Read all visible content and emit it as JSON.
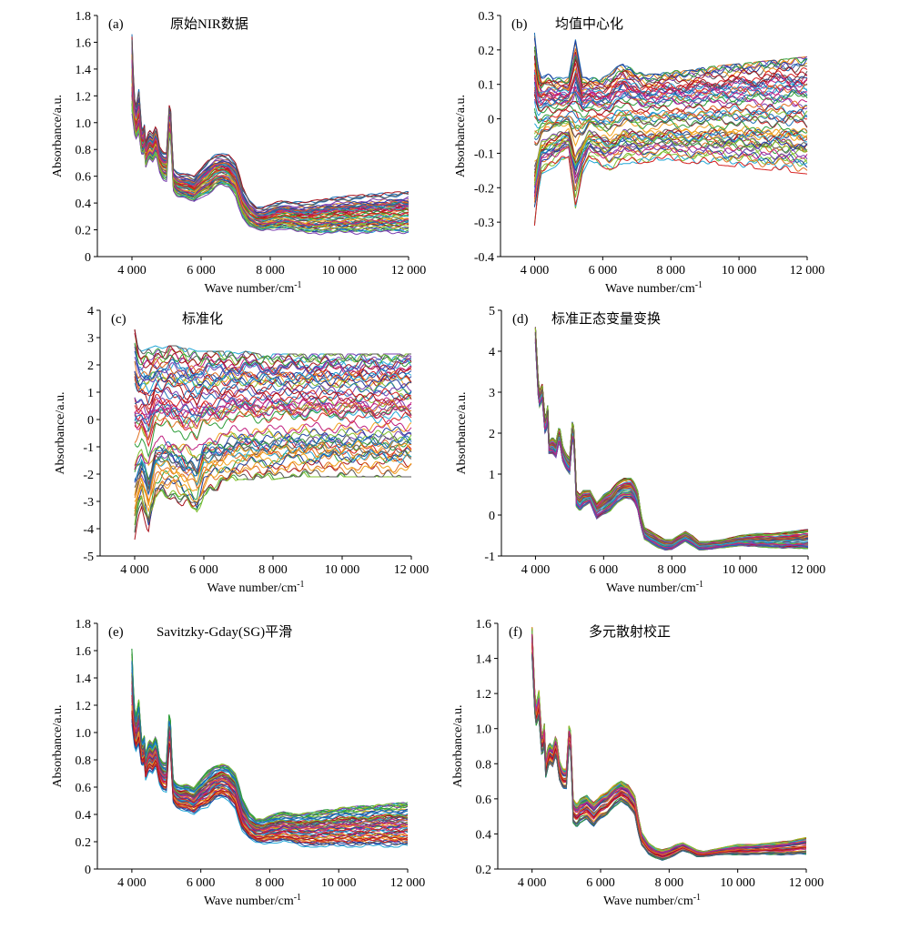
{
  "palette": [
    "#1f3f9e",
    "#d62020",
    "#2e9e3a",
    "#f0a01a",
    "#22a7d6",
    "#7a3fb0",
    "#a8101a",
    "#7fbf2e",
    "#e07020",
    "#1a6eb5",
    "#c02080",
    "#5a5a5a"
  ],
  "chart_data": [
    {
      "type": "line",
      "panel": "(a)",
      "title": "原始NIR数据",
      "xlabel": "Wave number/cm",
      "xlabel_sup": "-1",
      "ylabel": "Absorbance/a.u.",
      "xlim": [
        3000,
        12000
      ],
      "ylim": [
        0,
        1.8
      ],
      "xticks": [
        4000,
        6000,
        8000,
        10000,
        12000
      ],
      "xtick_labels": [
        "4 000",
        "6 000",
        "8 000",
        "10 000",
        "12 000"
      ],
      "yticks": [
        0,
        0.2,
        0.4,
        0.6,
        0.8,
        1.0,
        1.2,
        1.4,
        1.6,
        1.8
      ],
      "ytick_labels": [
        "0",
        "0.2",
        "0.4",
        "0.6",
        "0.8",
        "1.0",
        "1.2",
        "1.4",
        "1.6",
        "1.8"
      ],
      "grid": false,
      "mode": "raw",
      "x": [
        4000,
        4050,
        4100,
        4200,
        4300,
        4350,
        4400,
        4500,
        4600,
        4700,
        4800,
        4900,
        5000,
        5100,
        5150,
        5200,
        5300,
        5400,
        5600,
        5800,
        6000,
        6200,
        6400,
        6600,
        6800,
        6900,
        7000,
        7100,
        7200,
        7400,
        7600,
        7800,
        8000,
        8200,
        8400,
        8600,
        8800,
        9000,
        9500,
        10000,
        10500,
        11000,
        11500,
        12000
      ],
      "envelope_low": [
        1.05,
        0.95,
        0.85,
        0.9,
        0.72,
        0.8,
        0.65,
        0.72,
        0.7,
        0.75,
        0.62,
        0.57,
        0.56,
        0.95,
        0.7,
        0.48,
        0.44,
        0.43,
        0.42,
        0.4,
        0.44,
        0.45,
        0.5,
        0.52,
        0.5,
        0.47,
        0.44,
        0.35,
        0.28,
        0.22,
        0.19,
        0.18,
        0.19,
        0.19,
        0.2,
        0.19,
        0.17,
        0.16,
        0.16,
        0.16,
        0.16,
        0.16,
        0.16,
        0.16
      ],
      "envelope_high": [
        1.66,
        1.3,
        1.1,
        1.25,
        0.9,
        1.02,
        0.85,
        0.95,
        0.92,
        0.98,
        0.82,
        0.78,
        0.78,
        1.22,
        0.9,
        0.66,
        0.63,
        0.62,
        0.62,
        0.6,
        0.66,
        0.72,
        0.76,
        0.77,
        0.76,
        0.73,
        0.7,
        0.62,
        0.52,
        0.42,
        0.37,
        0.37,
        0.39,
        0.41,
        0.42,
        0.41,
        0.41,
        0.41,
        0.43,
        0.45,
        0.46,
        0.47,
        0.48,
        0.49
      ]
    },
    {
      "type": "line",
      "panel": "(b)",
      "title": "均值中心化",
      "xlabel": "Wave number/cm",
      "xlabel_sup": "-1",
      "ylabel": "Absorbance/a.u.",
      "xlim": [
        3000,
        12000
      ],
      "ylim": [
        -0.4,
        0.3
      ],
      "xticks": [
        4000,
        6000,
        8000,
        10000,
        12000
      ],
      "xtick_labels": [
        "4 000",
        "6 000",
        "8 000",
        "10 000",
        "12 000"
      ],
      "yticks": [
        -0.4,
        -0.3,
        -0.2,
        -0.1,
        0,
        0.1,
        0.2,
        0.3
      ],
      "ytick_labels": [
        "-0.4",
        "-0.3",
        "-0.2",
        "-0.1",
        "0",
        "0.1",
        "0.2",
        "0.3"
      ],
      "grid": false,
      "mode": "centered",
      "x": [
        4000,
        4100,
        4200,
        4400,
        4600,
        4800,
        5000,
        5200,
        5400,
        5600,
        5800,
        6000,
        6200,
        6400,
        6600,
        6800,
        7000,
        7200,
        7600,
        8000,
        8500,
        9000,
        10000,
        11000,
        12000
      ],
      "envelope_low": [
        -0.31,
        -0.22,
        -0.16,
        -0.15,
        -0.14,
        -0.12,
        -0.11,
        -0.26,
        -0.16,
        -0.12,
        -0.13,
        -0.14,
        -0.15,
        -0.14,
        -0.13,
        -0.13,
        -0.13,
        -0.13,
        -0.12,
        -0.12,
        -0.13,
        -0.13,
        -0.14,
        -0.15,
        -0.16
      ],
      "envelope_high": [
        0.25,
        0.15,
        0.12,
        0.13,
        0.12,
        0.12,
        0.12,
        0.23,
        0.12,
        0.12,
        0.12,
        0.12,
        0.13,
        0.15,
        0.16,
        0.15,
        0.14,
        0.13,
        0.13,
        0.14,
        0.14,
        0.15,
        0.16,
        0.17,
        0.18
      ]
    },
    {
      "type": "line",
      "panel": "(c)",
      "title": "标准化",
      "xlabel": "Wave number/cm",
      "xlabel_sup": "-1",
      "ylabel": "Absorbance/a.u.",
      "xlim": [
        3000,
        12000
      ],
      "ylim": [
        -5,
        4
      ],
      "xticks": [
        4000,
        6000,
        8000,
        10000,
        12000
      ],
      "xtick_labels": [
        "4 000",
        "6 000",
        "8 000",
        "10 000",
        "12 000"
      ],
      "yticks": [
        -5,
        -4,
        -3,
        -2,
        -1,
        0,
        1,
        2,
        3,
        4
      ],
      "ytick_labels": [
        "-5",
        "-4",
        "-3",
        "-2",
        "-1",
        "0",
        "1",
        "2",
        "3",
        "4"
      ],
      "grid": false,
      "mode": "centered",
      "x": [
        4000,
        4100,
        4200,
        4400,
        4600,
        4800,
        5000,
        5200,
        5400,
        5600,
        5800,
        6000,
        6200,
        6400,
        6600,
        6800,
        7000,
        7200,
        7600,
        8000,
        8500,
        9000,
        10000,
        11000,
        12000
      ],
      "envelope_low": [
        -4.4,
        -3.6,
        -3.2,
        -4.3,
        -3.0,
        -2.8,
        -2.9,
        -3.0,
        -3.2,
        -3.3,
        -3.6,
        -2.8,
        -2.6,
        -2.6,
        -2.4,
        -2.3,
        -2.2,
        -2.2,
        -2.2,
        -2.2,
        -2.1,
        -2.1,
        -2.1,
        -2.1,
        -2.1
      ],
      "envelope_high": [
        3.3,
        2.6,
        2.5,
        2.6,
        2.7,
        2.6,
        2.7,
        2.7,
        2.6,
        2.6,
        2.5,
        2.5,
        2.5,
        2.5,
        2.5,
        2.5,
        2.4,
        2.5,
        2.4,
        2.4,
        2.4,
        2.4,
        2.4,
        2.4,
        2.4
      ]
    },
    {
      "type": "line",
      "panel": "(d)",
      "title": "标准正态变量变换",
      "xlabel": "Wave number/cm",
      "xlabel_sup": "-1",
      "ylabel": "Absorbance/a.u.",
      "xlim": [
        3000,
        12000
      ],
      "ylim": [
        -1,
        5
      ],
      "xticks": [
        4000,
        6000,
        8000,
        10000,
        12000
      ],
      "xtick_labels": [
        "4 000",
        "6 000",
        "8 000",
        "10 000",
        "12 000"
      ],
      "yticks": [
        -1,
        0,
        1,
        2,
        3,
        4,
        5
      ],
      "ytick_labels": [
        "-1",
        "0",
        "1",
        "2",
        "3",
        "4",
        "5"
      ],
      "grid": false,
      "mode": "raw",
      "x": [
        4000,
        4050,
        4100,
        4200,
        4300,
        4350,
        4400,
        4500,
        4600,
        4700,
        4800,
        4900,
        5000,
        5100,
        5150,
        5200,
        5300,
        5400,
        5600,
        5800,
        6000,
        6200,
        6400,
        6600,
        6800,
        6900,
        7000,
        7100,
        7200,
        7400,
        7600,
        7800,
        8000,
        8200,
        8400,
        8600,
        8800,
        9000,
        9500,
        10000,
        10500,
        11000,
        11500,
        12000
      ],
      "envelope_low": [
        4.2,
        3.4,
        2.6,
        2.8,
        1.8,
        2.5,
        1.5,
        1.5,
        1.4,
        1.8,
        1.3,
        1.1,
        1.0,
        2.0,
        1.3,
        0.2,
        0.1,
        0.2,
        0.3,
        -0.1,
        0.0,
        0.1,
        0.3,
        0.4,
        0.4,
        0.3,
        0.1,
        -0.3,
        -0.6,
        -0.7,
        -0.8,
        -0.85,
        -0.85,
        -0.75,
        -0.65,
        -0.75,
        -0.85,
        -0.85,
        -0.8,
        -0.75,
        -0.78,
        -0.8,
        -0.82,
        -0.82
      ],
      "envelope_high": [
        4.6,
        3.8,
        3.0,
        3.2,
        2.2,
        2.9,
        1.8,
        1.9,
        1.8,
        2.2,
        1.7,
        1.5,
        1.4,
        2.5,
        1.7,
        0.6,
        0.5,
        0.6,
        0.6,
        0.3,
        0.5,
        0.6,
        0.8,
        0.9,
        0.9,
        0.8,
        0.6,
        0.0,
        -0.3,
        -0.4,
        -0.5,
        -0.6,
        -0.6,
        -0.5,
        -0.4,
        -0.5,
        -0.65,
        -0.65,
        -0.6,
        -0.5,
        -0.45,
        -0.45,
        -0.4,
        -0.35
      ]
    },
    {
      "type": "line",
      "panel": "(e)",
      "title": "Savitzky-Gday(SG)平滑",
      "xlabel": "Wave number/cm",
      "xlabel_sup": "-1",
      "ylabel": "Absorbance/a.u.",
      "xlim": [
        3000,
        12000
      ],
      "ylim": [
        0,
        1.8
      ],
      "xticks": [
        4000,
        6000,
        8000,
        10000,
        12000
      ],
      "xtick_labels": [
        "4 000",
        "6 000",
        "8 000",
        "10 000",
        "12 000"
      ],
      "yticks": [
        0,
        0.2,
        0.4,
        0.6,
        0.8,
        1.0,
        1.2,
        1.4,
        1.6,
        1.8
      ],
      "ytick_labels": [
        "0",
        "0.2",
        "0.4",
        "0.6",
        "0.8",
        "1.0",
        "1.2",
        "1.4",
        "1.6",
        "1.8"
      ],
      "grid": false,
      "mode": "raw",
      "x": [
        4000,
        4050,
        4100,
        4200,
        4300,
        4350,
        4400,
        4500,
        4600,
        4700,
        4800,
        4900,
        5000,
        5100,
        5150,
        5200,
        5300,
        5400,
        5600,
        5800,
        6000,
        6200,
        6400,
        6600,
        6800,
        6900,
        7000,
        7100,
        7200,
        7400,
        7600,
        7800,
        8000,
        8200,
        8400,
        8600,
        8800,
        9000,
        9500,
        10000,
        10500,
        11000,
        11500,
        12000
      ],
      "envelope_low": [
        1.05,
        0.95,
        0.85,
        0.9,
        0.72,
        0.8,
        0.65,
        0.72,
        0.7,
        0.75,
        0.62,
        0.57,
        0.56,
        0.95,
        0.7,
        0.48,
        0.44,
        0.43,
        0.42,
        0.4,
        0.44,
        0.45,
        0.5,
        0.52,
        0.5,
        0.47,
        0.44,
        0.35,
        0.28,
        0.22,
        0.19,
        0.18,
        0.19,
        0.19,
        0.2,
        0.19,
        0.17,
        0.16,
        0.16,
        0.16,
        0.16,
        0.16,
        0.16,
        0.16
      ],
      "envelope_high": [
        1.62,
        1.3,
        1.1,
        1.25,
        0.9,
        1.02,
        0.85,
        0.95,
        0.92,
        0.98,
        0.82,
        0.78,
        0.78,
        1.22,
        0.9,
        0.66,
        0.63,
        0.62,
        0.62,
        0.6,
        0.66,
        0.72,
        0.76,
        0.77,
        0.76,
        0.73,
        0.7,
        0.62,
        0.52,
        0.42,
        0.37,
        0.37,
        0.39,
        0.41,
        0.42,
        0.41,
        0.41,
        0.41,
        0.43,
        0.45,
        0.46,
        0.47,
        0.48,
        0.49
      ]
    },
    {
      "type": "line",
      "panel": "(f)",
      "title": "多元散射校正",
      "xlabel": "Wave number/cm",
      "xlabel_sup": "-1",
      "ylabel": "Absorbance/a.u.",
      "xlim": [
        3000,
        12000
      ],
      "ylim": [
        0.2,
        1.6
      ],
      "xticks": [
        4000,
        6000,
        8000,
        10000,
        12000
      ],
      "xtick_labels": [
        "4 000",
        "6 000",
        "8 000",
        "10 000",
        "12 000"
      ],
      "yticks": [
        0.2,
        0.4,
        0.6,
        0.8,
        1.0,
        1.2,
        1.4,
        1.6
      ],
      "ytick_labels": [
        "0.2",
        "0.4",
        "0.6",
        "0.8",
        "1.0",
        "1.2",
        "1.4",
        "1.6"
      ],
      "grid": false,
      "mode": "raw",
      "x": [
        4000,
        4050,
        4100,
        4200,
        4300,
        4350,
        4400,
        4500,
        4600,
        4700,
        4800,
        4900,
        5000,
        5100,
        5150,
        5200,
        5300,
        5400,
        5600,
        5800,
        6000,
        6200,
        6400,
        6600,
        6800,
        6900,
        7000,
        7100,
        7200,
        7400,
        7600,
        7800,
        8000,
        8200,
        8400,
        8600,
        8800,
        9000,
        9500,
        10000,
        10500,
        11000,
        11500,
        12000
      ],
      "envelope_low": [
        1.4,
        1.2,
        1.0,
        1.05,
        0.8,
        0.95,
        0.72,
        0.8,
        0.78,
        0.85,
        0.7,
        0.65,
        0.65,
        0.95,
        0.75,
        0.45,
        0.43,
        0.46,
        0.48,
        0.44,
        0.48,
        0.5,
        0.55,
        0.58,
        0.56,
        0.53,
        0.5,
        0.4,
        0.33,
        0.28,
        0.26,
        0.25,
        0.26,
        0.28,
        0.3,
        0.29,
        0.27,
        0.27,
        0.28,
        0.28,
        0.28,
        0.28,
        0.28,
        0.28
      ],
      "envelope_high": [
        1.58,
        1.35,
        1.12,
        1.22,
        0.92,
        1.08,
        0.84,
        0.92,
        0.9,
        0.97,
        0.82,
        0.77,
        0.77,
        1.08,
        0.86,
        0.6,
        0.57,
        0.6,
        0.62,
        0.58,
        0.62,
        0.64,
        0.68,
        0.7,
        0.68,
        0.65,
        0.62,
        0.5,
        0.41,
        0.35,
        0.32,
        0.31,
        0.32,
        0.34,
        0.35,
        0.33,
        0.31,
        0.3,
        0.32,
        0.34,
        0.34,
        0.35,
        0.36,
        0.38
      ]
    }
  ]
}
